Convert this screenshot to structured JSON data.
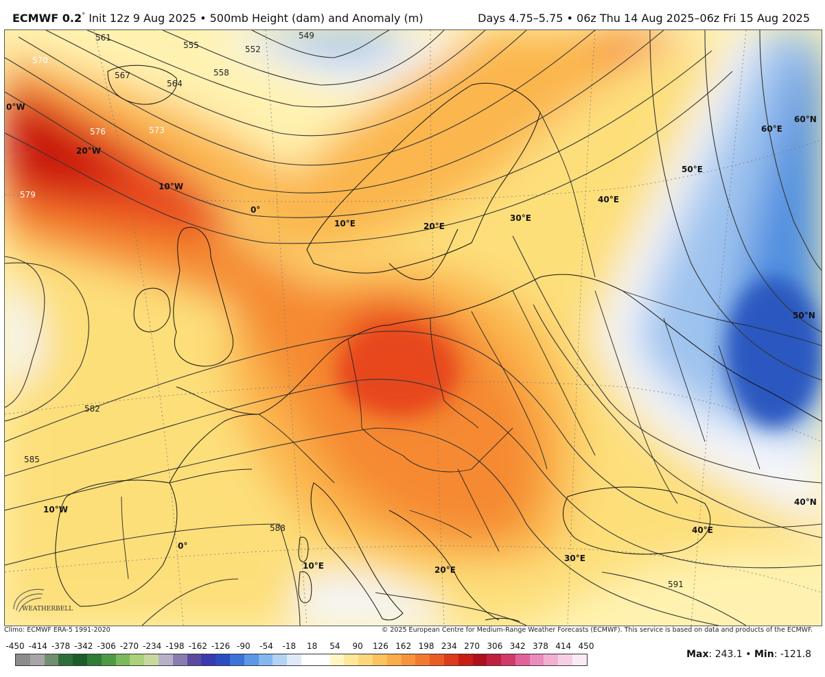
{
  "header": {
    "model": "ECMWF 0.2",
    "degree": "°",
    "init": "Init 12z 9 Aug 2025 • 500mb Height (dam) and Anomaly (m)",
    "valid": "Days 4.75–5.75 • 06z Thu 14 Aug 2025–06z Fri 15 Aug 2025"
  },
  "map": {
    "contour_labels": [
      "549",
      "552",
      "555",
      "558",
      "561",
      "564",
      "567",
      "570",
      "573",
      "576",
      "579",
      "582",
      "585",
      "588",
      "591"
    ],
    "longitude_labels": [
      "0°W",
      "20°W",
      "10°W",
      "0°",
      "10°E",
      "20°E",
      "30°E",
      "40°E",
      "50°E",
      "60°E",
      "10°W",
      "0°",
      "10°E",
      "20°E",
      "30°E",
      "40°E"
    ],
    "latitude_labels": [
      "60°N",
      "50°N",
      "40°N"
    ],
    "colors": {
      "deep_red": "#c8120a",
      "red": "#e8461a",
      "orange": "#f58a32",
      "light_orange": "#fbb64e",
      "yellow": "#fddf7a",
      "pale_yellow": "#fff2b0",
      "white": "#f4f6fb",
      "light_blue": "#9ec3ee",
      "blue": "#4f8fe0",
      "deep_blue": "#2c58c0"
    }
  },
  "logo": {
    "text": "WEATHERBELL"
  },
  "credits": {
    "climo": "Climo: ECMWF ERA-5 1991-2020",
    "copyright": "© 2025 European Centre for Medium-Range Weather Forecasts (ECMWF). This service is based on data and products of the ECMWF."
  },
  "legend": {
    "ticks": [
      "-450",
      "-414",
      "-378",
      "-342",
      "-306",
      "-270",
      "-234",
      "-198",
      "-162",
      "-126",
      "-90",
      "-54",
      "-18",
      "18",
      "54",
      "90",
      "126",
      "162",
      "198",
      "234",
      "270",
      "306",
      "342",
      "378",
      "414",
      "450"
    ],
    "swatches": [
      "#8c8c8c",
      "#a6a6a6",
      "#6f8f6f",
      "#2f6e3a",
      "#1b5e2b",
      "#2f7d36",
      "#4e9a44",
      "#7cb85e",
      "#a9d27a",
      "#c8d9a0",
      "#b8b0c8",
      "#8a7cb0",
      "#5a4aa0",
      "#3a3ab0",
      "#2a4ec0",
      "#3a74d8",
      "#5c98e6",
      "#86b6ee",
      "#b4d2f4",
      "#dfe9f8",
      "#ffffff",
      "#ffffff",
      "#fff6c2",
      "#ffe89a",
      "#fdd87a",
      "#fcc35e",
      "#fbad4a",
      "#f7933c",
      "#f27a30",
      "#ea5c26",
      "#dc3c1c",
      "#c81e14",
      "#b0101a",
      "#c02040",
      "#d23a6a",
      "#e0649a",
      "#ea8cbc",
      "#f1b0d2",
      "#f6cfe4",
      "#faeaf3"
    ]
  },
  "stats": {
    "max_label": "Max",
    "max_value": "243.1",
    "min_label": "Min",
    "min_value": "-121.8",
    "sep": "•"
  }
}
